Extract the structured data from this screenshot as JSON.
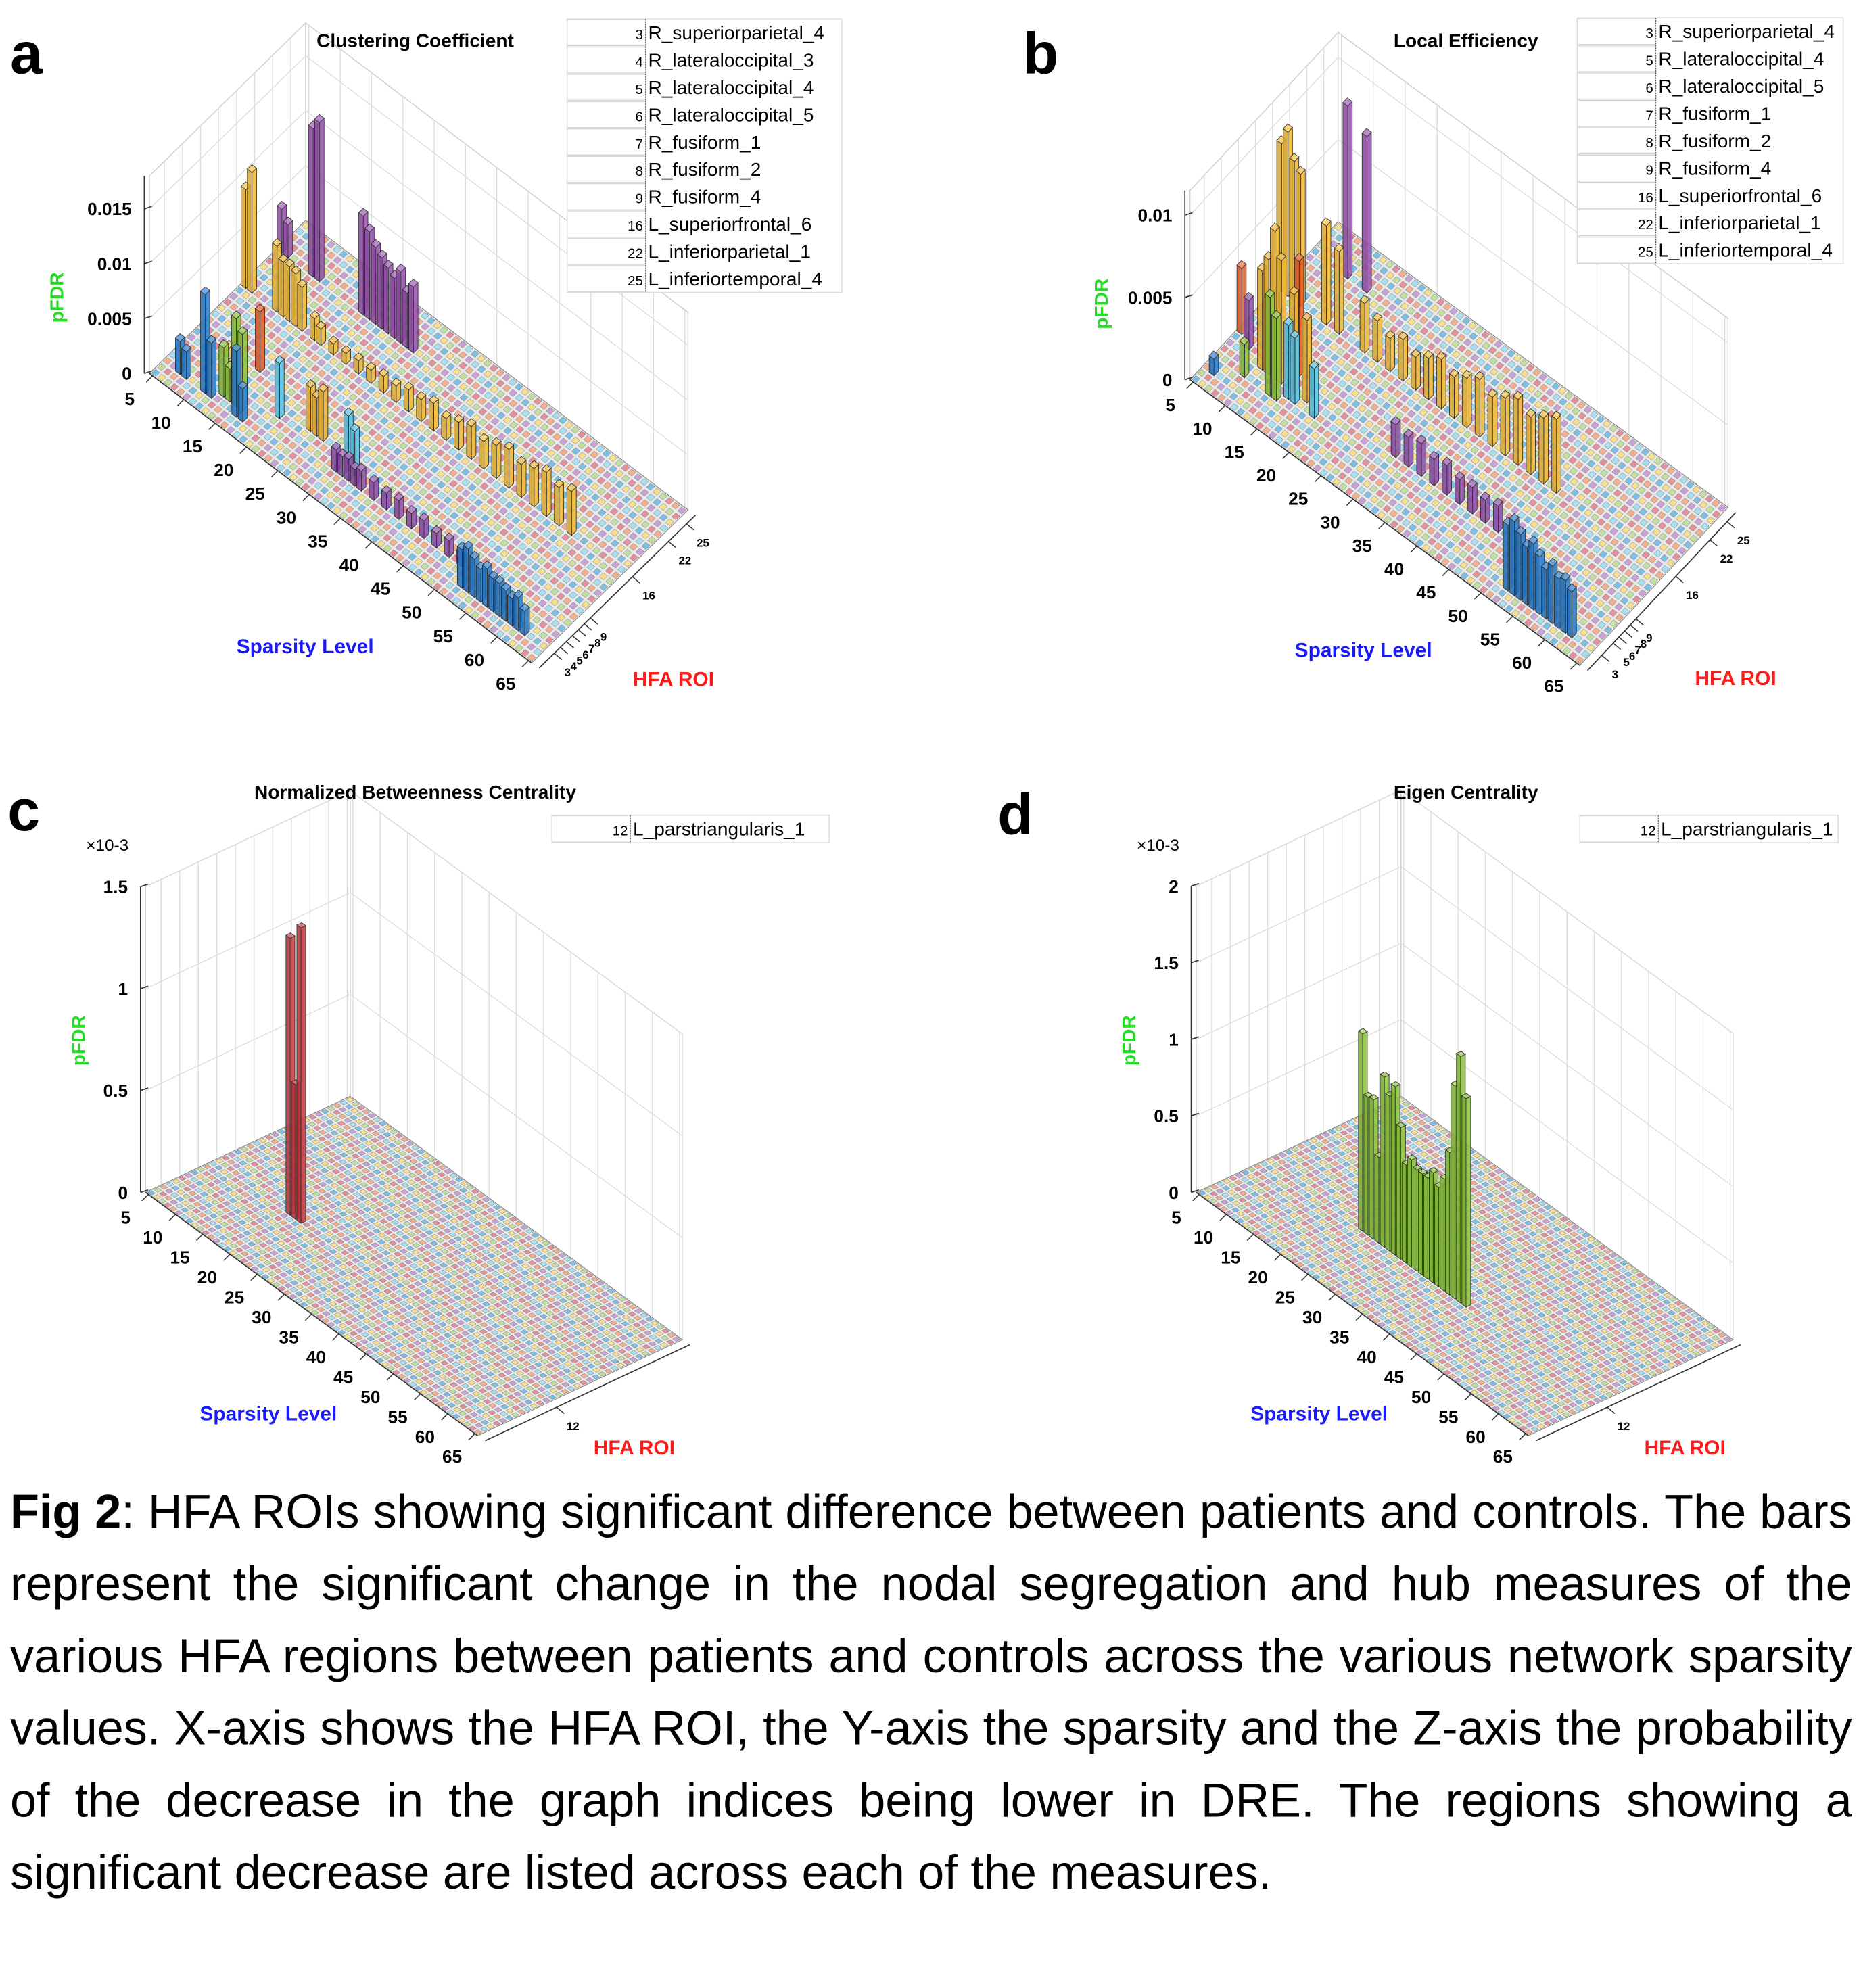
{
  "chart_data": [
    {
      "panel_label": "a",
      "type": "bar3d",
      "title": "Clustering Coefficient",
      "xlabel": "HFA ROI",
      "ylabel": "Sparsity Level",
      "zlabel": "pFDR",
      "z_multiplier": "",
      "zlim": [
        0,
        0.018
      ],
      "z_ticks": [
        "0",
        "0.005",
        "0.01",
        "0.015"
      ],
      "sparsity_ticks": [
        "5",
        "10",
        "15",
        "20",
        "25",
        "30",
        "35",
        "40",
        "45",
        "50",
        "55",
        "60",
        "65"
      ],
      "roi_ticks": [
        "3",
        "4",
        "5",
        "6",
        "7",
        "8",
        "9",
        "16",
        "22",
        "25"
      ],
      "legend": [
        {
          "roi": "3",
          "name": "R_superiorparietal_4"
        },
        {
          "roi": "4",
          "name": "R_lateraloccipital_3"
        },
        {
          "roi": "5",
          "name": "R_lateraloccipital_4"
        },
        {
          "roi": "6",
          "name": "R_lateraloccipital_5"
        },
        {
          "roi": "7",
          "name": "R_fusiform_1"
        },
        {
          "roi": "8",
          "name": "R_fusiform_2"
        },
        {
          "roi": "9",
          "name": "R_fusiform_4"
        },
        {
          "roi": "16",
          "name": "L_superiorfrontal_6"
        },
        {
          "roi": "22",
          "name": "L_inferiorparietal_1"
        },
        {
          "roi": "25",
          "name": "L_inferiortemporal_4"
        }
      ],
      "series": [
        {
          "roi": 3,
          "color": "#2a7fd0",
          "bars": [
            [
              7,
              0.003
            ],
            [
              8,
              0.0025
            ],
            [
              11,
              0.009
            ],
            [
              12,
              0.005
            ],
            [
              16,
              0.006
            ],
            [
              17,
              0.003
            ],
            [
              52,
              0.0035
            ],
            [
              53,
              0.004
            ],
            [
              54,
              0.0035
            ],
            [
              55,
              0.003
            ],
            [
              56,
              0.0035
            ],
            [
              57,
              0.003
            ],
            [
              58,
              0.003
            ],
            [
              59,
              0.0028
            ],
            [
              60,
              0.0025
            ],
            [
              61,
              0.003
            ],
            [
              62,
              0.0022
            ]
          ]
        },
        {
          "roi": 4,
          "color": "#8dc63f",
          "bars": [
            [
              13,
              0.0045
            ],
            [
              14,
              0.003
            ],
            [
              15,
              0.008
            ],
            [
              16,
              0.007
            ]
          ]
        },
        {
          "roi": 5,
          "color": "#9450b0",
          "bars": [
            [
              30,
              0.002
            ],
            [
              31,
              0.0018
            ],
            [
              32,
              0.002
            ],
            [
              33,
              0.0015
            ],
            [
              34,
              0.0018
            ],
            [
              36,
              0.0016
            ],
            [
              38,
              0.0015
            ],
            [
              40,
              0.0017
            ],
            [
              42,
              0.0014
            ],
            [
              44,
              0.0016
            ],
            [
              46,
              0.0013
            ],
            [
              48,
              0.0015
            ],
            [
              50,
              0.0012
            ]
          ]
        },
        {
          "roi": 6,
          "color": "#5cc8ea",
          "bars": [
            [
              20,
              0.005
            ],
            [
              31,
              0.005
            ],
            [
              32,
              0.004
            ]
          ]
        },
        {
          "roi": 7,
          "color": "#f2b632",
          "bars": [
            [
              24,
              0.004
            ],
            [
              25,
              0.0035
            ],
            [
              26,
              0.0045
            ]
          ]
        },
        {
          "roi": 8,
          "color": "#f5c84a",
          "bars": [
            [
              10,
              0.001
            ]
          ]
        },
        {
          "roi": 9,
          "color": "#e8602c",
          "bars": [
            [
              14,
              0.0055
            ]
          ]
        },
        {
          "roi": 16,
          "color": "#f3bd3a",
          "bars": [
            [
              5,
              0.009
            ],
            [
              6,
              0.011
            ],
            [
              10,
              0.006
            ],
            [
              11,
              0.005
            ],
            [
              12,
              0.005
            ],
            [
              13,
              0.0048
            ],
            [
              14,
              0.004
            ],
            [
              16,
              0.002
            ],
            [
              17,
              0.0015
            ],
            [
              19,
              0.001
            ],
            [
              21,
              0.001
            ],
            [
              23,
              0.0012
            ],
            [
              25,
              0.0012
            ],
            [
              27,
              0.0015
            ],
            [
              29,
              0.0015
            ],
            [
              31,
              0.002
            ],
            [
              33,
              0.002
            ],
            [
              35,
              0.0025
            ],
            [
              37,
              0.002
            ],
            [
              39,
              0.0025
            ],
            [
              41,
              0.003
            ],
            [
              43,
              0.0025
            ],
            [
              45,
              0.003
            ],
            [
              47,
              0.0035
            ],
            [
              49,
              0.003
            ],
            [
              51,
              0.0035
            ],
            [
              53,
              0.004
            ],
            [
              55,
              0.0035
            ],
            [
              57,
              0.004
            ]
          ]
        },
        {
          "roi": 22,
          "color": "#9a55b2",
          "bars": [
            [
              5,
              0.004
            ],
            [
              6,
              0.003
            ],
            [
              10,
              0.0135
            ],
            [
              11,
              0.0145
            ],
            [
              18,
              0.009
            ],
            [
              19,
              0.008
            ],
            [
              20,
              0.007
            ],
            [
              21,
              0.0065
            ],
            [
              22,
              0.006
            ],
            [
              23,
              0.0055
            ],
            [
              24,
              0.0065
            ],
            [
              25,
              0.005
            ],
            [
              26,
              0.006
            ]
          ]
        }
      ]
    },
    {
      "panel_label": "b",
      "type": "bar3d",
      "title": "Local Efficiency",
      "xlabel": "HFA ROI",
      "ylabel": "Sparsity Level",
      "zlabel": "pFDR",
      "z_multiplier": "",
      "zlim": [
        0,
        0.0115
      ],
      "z_ticks": [
        "0",
        "0.005",
        "0.01"
      ],
      "sparsity_ticks": [
        "5",
        "10",
        "15",
        "20",
        "25",
        "30",
        "35",
        "40",
        "45",
        "50",
        "55",
        "60",
        "65"
      ],
      "roi_ticks": [
        "3",
        "5",
        "6",
        "7",
        "8",
        "9",
        "16",
        "22",
        "25"
      ],
      "legend": [
        {
          "roi": "3",
          "name": "R_superiorparietal_4"
        },
        {
          "roi": "5",
          "name": "R_lateraloccipital_4"
        },
        {
          "roi": "6",
          "name": "R_lateraloccipital_5"
        },
        {
          "roi": "7",
          "name": "R_fusiform_1"
        },
        {
          "roi": "8",
          "name": "R_fusiform_2"
        },
        {
          "roi": "9",
          "name": "R_fusiform_4"
        },
        {
          "roi": "16",
          "name": "L_superiorfrontal_6"
        },
        {
          "roi": "22",
          "name": "L_inferiorparietal_1"
        },
        {
          "roi": "25",
          "name": "L_inferiortemporal_4"
        }
      ],
      "series": [
        {
          "roi": 3,
          "color": "#2a7fd0",
          "bars": [
            [
              6,
              0.001
            ],
            [
              52,
              0.004
            ],
            [
              53,
              0.0045
            ],
            [
              54,
              0.004
            ],
            [
              55,
              0.0035
            ],
            [
              56,
              0.004
            ],
            [
              57,
              0.0035
            ],
            [
              58,
              0.003
            ],
            [
              59,
              0.0035
            ],
            [
              60,
              0.003
            ],
            [
              61,
              0.0032
            ],
            [
              62,
              0.0028
            ]
          ]
        },
        {
          "roi": 5,
          "color": "#8dc63f",
          "bars": [
            [
              9,
              0.002
            ],
            [
              13,
              0.006
            ],
            [
              14,
              0.005
            ]
          ]
        },
        {
          "roi": 6,
          "color": "#5cc8ea",
          "bars": [
            [
              15,
              0.0045
            ],
            [
              16,
              0.004
            ],
            [
              19,
              0.003
            ]
          ]
        },
        {
          "roi": 7,
          "color": "#f2b632",
          "bars": [
            [
              10,
              0.006
            ],
            [
              11,
              0.007
            ],
            [
              12,
              0.009
            ],
            [
              13,
              0.0075
            ],
            [
              15,
              0.006
            ],
            [
              17,
              0.005
            ]
          ]
        },
        {
          "roi": 8,
          "color": "#9450b0",
          "bars": [
            [
              7,
              0.003
            ],
            [
              30,
              0.002
            ],
            [
              32,
              0.0018
            ],
            [
              34,
              0.002
            ],
            [
              36,
              0.0016
            ],
            [
              38,
              0.0018
            ],
            [
              40,
              0.0015
            ],
            [
              42,
              0.0016
            ],
            [
              44,
              0.0014
            ],
            [
              46,
              0.0016
            ]
          ]
        },
        {
          "roi": 9,
          "color": "#e8602c",
          "bars": [
            [
              5,
              0.004
            ],
            [
              14,
              0.007
            ]
          ]
        },
        {
          "roi": 16,
          "color": "#f3bd3a",
          "bars": [
            [
              5,
              0.009
            ],
            [
              6,
              0.01
            ],
            [
              7,
              0.0085
            ],
            [
              8,
              0.008
            ],
            [
              12,
              0.006
            ],
            [
              14,
              0.005
            ],
            [
              18,
              0.003
            ],
            [
              20,
              0.0025
            ],
            [
              22,
              0.002
            ],
            [
              24,
              0.0025
            ],
            [
              26,
              0.002
            ],
            [
              28,
              0.0025
            ],
            [
              30,
              0.003
            ],
            [
              32,
              0.0025
            ],
            [
              34,
              0.003
            ],
            [
              36,
              0.0035
            ],
            [
              38,
              0.003
            ],
            [
              40,
              0.0035
            ],
            [
              42,
              0.004
            ],
            [
              44,
              0.0035
            ],
            [
              46,
              0.004
            ],
            [
              48,
              0.0045
            ]
          ]
        },
        {
          "roi": 22,
          "color": "#9a55b2",
          "bars": [
            [
              10,
              0.0105
            ],
            [
              13,
              0.0095
            ]
          ]
        }
      ]
    },
    {
      "panel_label": "c",
      "type": "bar3d",
      "title": "Normalized Betweenness Centrality",
      "xlabel": "HFA ROI",
      "ylabel": "Sparsity Level",
      "zlabel": "pFDR",
      "z_multiplier": "×10-3",
      "zlim": [
        0,
        1.5
      ],
      "z_ticks": [
        "0",
        "0.5",
        "1",
        "1.5"
      ],
      "sparsity_ticks": [
        "5",
        "10",
        "15",
        "20",
        "25",
        "30",
        "35",
        "40",
        "45",
        "50",
        "55",
        "60",
        "65"
      ],
      "roi_ticks": [
        "12"
      ],
      "legend": [
        {
          "roi": "12",
          "name": "L_parstriangularis_1"
        }
      ],
      "series": [
        {
          "roi": 12,
          "color": "#c43c44",
          "bars": [
            [
              18,
              1.36
            ],
            [
              19,
              0.66
            ],
            [
              20,
              1.45
            ]
          ]
        }
      ]
    },
    {
      "panel_label": "d",
      "type": "bar3d",
      "title": "Eigen Centrality",
      "xlabel": "HFA ROI",
      "ylabel": "Sparsity Level",
      "zlabel": "pFDR",
      "z_multiplier": "×10-3",
      "zlim": [
        0,
        2
      ],
      "z_ticks": [
        "0",
        "0.5",
        "1",
        "1.5",
        "2"
      ],
      "sparsity_ticks": [
        "5",
        "10",
        "15",
        "20",
        "25",
        "30",
        "35",
        "40",
        "45",
        "50",
        "55",
        "60",
        "65"
      ],
      "roi_ticks": [
        "12"
      ],
      "legend": [
        {
          "roi": "12",
          "name": "L_parstriangularis_1"
        }
      ],
      "series": [
        {
          "roi": 12,
          "color": "#8dc63f",
          "bars": [
            [
              22,
              1.29
            ],
            [
              23,
              0.9
            ],
            [
              24,
              0.91
            ],
            [
              25,
              0.56
            ],
            [
              26,
              1.11
            ],
            [
              27,
              1.01
            ],
            [
              28,
              1.1
            ],
            [
              29,
              0.86
            ],
            [
              30,
              0.64
            ],
            [
              31,
              0.7
            ],
            [
              32,
              0.66
            ],
            [
              33,
              0.66
            ],
            [
              34,
              0.66
            ],
            [
              35,
              0.72
            ],
            [
              36,
              0.65
            ],
            [
              37,
              0.73
            ],
            [
              38,
              0.93
            ],
            [
              39,
              1.39
            ],
            [
              40,
              1.61
            ],
            [
              41,
              1.36
            ]
          ]
        }
      ]
    }
  ],
  "axis_colors": {
    "sparsity": "#1a1aff",
    "roi": "#ff1a1a",
    "pfdr": "#22dd22"
  },
  "floor_palette": [
    "#7cc0e6",
    "#f7e08e",
    "#c4e0a0",
    "#e6909c",
    "#f4b08e",
    "#c9a2da",
    "#a6e0f2"
  ],
  "caption": {
    "label": "Fig 2",
    "text": ": HFA ROIs showing significant difference between patients and controls. The bars represent the significant change in the nodal segregation and hub measures of the various HFA regions between patients and controls across the various network sparsity values. X-axis shows the HFA ROI, the Y-axis the sparsity and the Z-axis the probability of the decrease in the graph indices being lower in DRE. The regions showing a significant decrease are listed across each of the measures."
  }
}
